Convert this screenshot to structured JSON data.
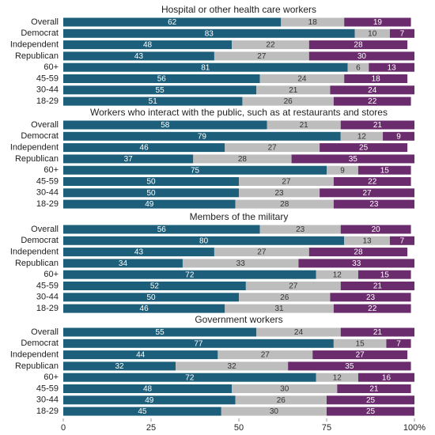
{
  "chart_data": [
    {
      "type": "bar",
      "orientation": "horizontal",
      "stacked": true,
      "title": "Hospital or other health care workers",
      "categories": [
        "Overall",
        "Democrat",
        "Independent",
        "Republican",
        "60+",
        "45-59",
        "30-44",
        "18-29"
      ],
      "series": [
        {
          "color": "#1d5f7a",
          "values": [
            62,
            83,
            48,
            43,
            81,
            56,
            55,
            51
          ]
        },
        {
          "color": "#bdbdbd",
          "values": [
            18,
            10,
            22,
            27,
            6,
            24,
            21,
            26
          ]
        },
        {
          "color": "#6a2c6c",
          "values": [
            19,
            7,
            28,
            30,
            13,
            18,
            24,
            22
          ]
        }
      ]
    },
    {
      "type": "bar",
      "orientation": "horizontal",
      "stacked": true,
      "title": "Workers who interact with the public, such as at restaurants and stores",
      "categories": [
        "Overall",
        "Democrat",
        "Independent",
        "Republican",
        "60+",
        "45-59",
        "30-44",
        "18-29"
      ],
      "series": [
        {
          "color": "#1d5f7a",
          "values": [
            58,
            79,
            46,
            37,
            75,
            50,
            50,
            49
          ]
        },
        {
          "color": "#bdbdbd",
          "values": [
            21,
            12,
            27,
            28,
            9,
            27,
            23,
            28
          ]
        },
        {
          "color": "#6a2c6c",
          "values": [
            21,
            9,
            25,
            35,
            15,
            22,
            27,
            23
          ]
        }
      ]
    },
    {
      "type": "bar",
      "orientation": "horizontal",
      "stacked": true,
      "title": "Members of the military",
      "categories": [
        "Overall",
        "Democrat",
        "Independent",
        "Republican",
        "60+",
        "45-59",
        "30-44",
        "18-29"
      ],
      "series": [
        {
          "color": "#1d5f7a",
          "values": [
            56,
            80,
            43,
            34,
            72,
            52,
            50,
            46
          ]
        },
        {
          "color": "#bdbdbd",
          "values": [
            23,
            13,
            27,
            33,
            12,
            27,
            26,
            31
          ]
        },
        {
          "color": "#6a2c6c",
          "values": [
            20,
            7,
            28,
            33,
            15,
            21,
            23,
            22
          ]
        }
      ]
    },
    {
      "type": "bar",
      "orientation": "horizontal",
      "stacked": true,
      "title": "Government workers",
      "categories": [
        "Overall",
        "Democrat",
        "Independent",
        "Republican",
        "60+",
        "45-59",
        "30-44",
        "18-29"
      ],
      "series": [
        {
          "color": "#1d5f7a",
          "values": [
            55,
            77,
            44,
            32,
            72,
            48,
            49,
            45
          ]
        },
        {
          "color": "#bdbdbd",
          "values": [
            24,
            15,
            27,
            32,
            12,
            30,
            26,
            30
          ]
        },
        {
          "color": "#6a2c6c",
          "values": [
            21,
            7,
            27,
            35,
            16,
            21,
            25,
            25
          ]
        }
      ],
      "xlim": [
        0,
        100
      ],
      "xticks": [
        0,
        25,
        50,
        75,
        {
          "value": 100,
          "label": "100%"
        }
      ]
    }
  ]
}
